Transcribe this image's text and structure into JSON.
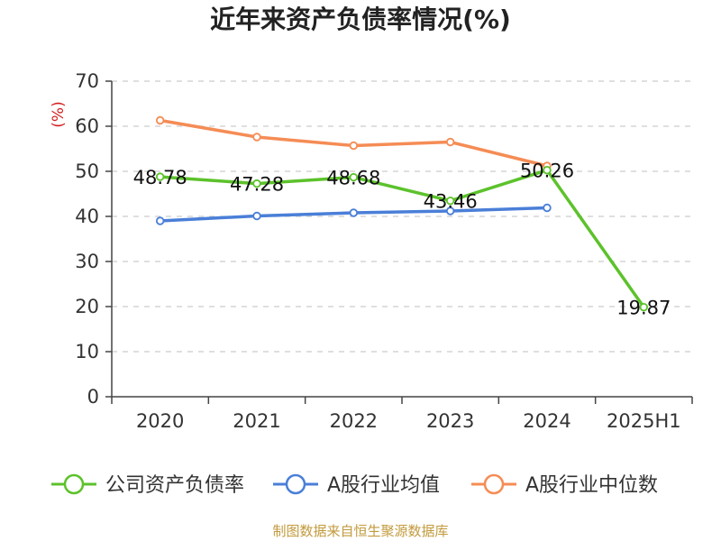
{
  "chart_data": {
    "type": "line",
    "title": "近年来资产负债率情况(%)",
    "unit_label": "(%)",
    "categories": [
      "2020",
      "2021",
      "2022",
      "2023",
      "2024",
      "2025H1"
    ],
    "ylim": [
      0,
      70
    ],
    "yticks": [
      "0",
      "10",
      "20",
      "30",
      "40",
      "50",
      "60",
      "70"
    ],
    "grid": true,
    "legend_position": "bottom",
    "series": [
      {
        "name": "公司资产负债率",
        "color": "#5cc22b",
        "values": [
          48.78,
          47.28,
          48.68,
          43.46,
          50.26,
          19.87
        ],
        "labels": [
          "48.78",
          "47.28",
          "48.68",
          "43.46",
          "50.26",
          "19.87"
        ]
      },
      {
        "name": "A股行业均值",
        "color": "#4a7fd8",
        "values": [
          39.0,
          40.1,
          40.8,
          41.2,
          41.9,
          null
        ]
      },
      {
        "name": "A股行业中位数",
        "color": "#f58c55",
        "values": [
          61.3,
          57.6,
          55.7,
          56.5,
          51.2,
          null
        ]
      }
    ],
    "source": "制图数据来自恒生聚源数据库"
  }
}
